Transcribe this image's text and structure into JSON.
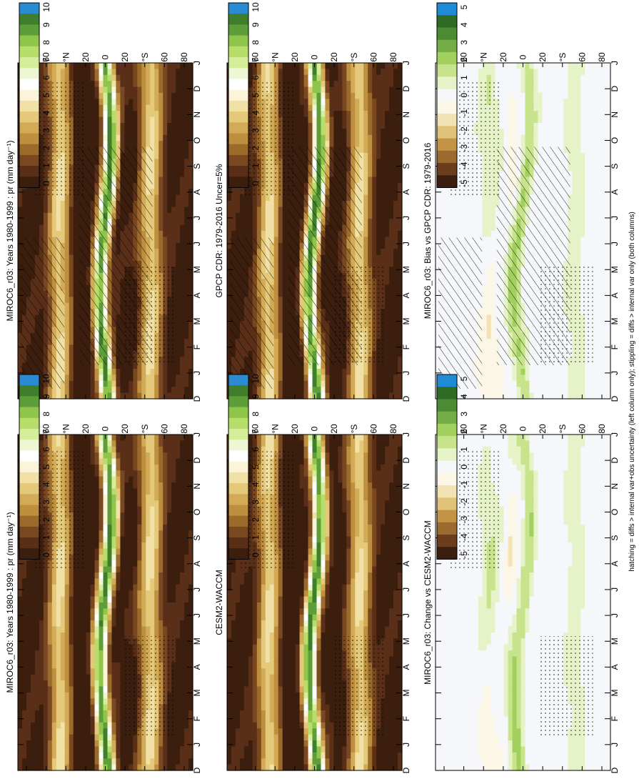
{
  "footnote": "hatching = diffs > internal var+obs uncertainty (left column only); stippling = diffs > internal var only (both columns)",
  "palettes": {
    "precip": [
      "#fdfdfd",
      "#f5eab9",
      "#ecd58b",
      "#ddb864",
      "#cf9c45",
      "#b98436",
      "#a06a2c",
      "#875226",
      "#6f3e20",
      "#5a2f18",
      "#4a2412",
      "#fefefe"
    ],
    "precip_ordered": [
      "#3c1e0f",
      "#5a2f18",
      "#7a4820",
      "#9c6a2b",
      "#be8f3e",
      "#d3ab56",
      "#e4c97a",
      "#f1e1a6",
      "#fbf4d8",
      "#ffffff",
      "#eef7d4",
      "#d6ee9a",
      "#b7dd6a",
      "#8fc54a",
      "#5e9e3a",
      "#3f7f2c",
      "#2a8bd2"
    ],
    "diff_ordered": [
      "#3c1e0f",
      "#6a3d1c",
      "#9a6a2e",
      "#c39445",
      "#e0c27a",
      "#f2e3b4",
      "#fbf6e6",
      "#f5f7fb",
      "#e6f2c7",
      "#c7e48c",
      "#a2d05e",
      "#74ad45",
      "#4b8b34",
      "#2f6b25",
      "#1f8ad6"
    ]
  },
  "chart_data": [
    {
      "id": "panel-model-left",
      "type": "heatmap",
      "title": "MIROC6_r03: Years 1980-1999 : pr (mm day⁻¹)",
      "x_ticks": [
        "D",
        "J",
        "F",
        "M",
        "A",
        "M",
        "J",
        "J",
        "A",
        "S",
        "O",
        "N",
        "D",
        "J"
      ],
      "y_ticks": [
        "80",
        "60",
        "°N",
        "20",
        "0",
        "20",
        "°S",
        "60",
        "80"
      ],
      "colorbar_ticks": [
        "10",
        "9",
        "8",
        "7",
        "6",
        "5",
        "4",
        "3",
        "2",
        "1",
        "0"
      ],
      "palette": "precip",
      "hatching": true,
      "stippling": true
    },
    {
      "id": "panel-model-right",
      "type": "heatmap",
      "title": "MIROC6_r03: Years 1980-1999 : pr (mm day⁻¹)",
      "x_ticks": [
        "D",
        "J",
        "F",
        "M",
        "A",
        "M",
        "J",
        "J",
        "A",
        "S",
        "O",
        "N",
        "D",
        "J"
      ],
      "y_ticks": [
        "80",
        "60",
        "°N",
        "20",
        "0",
        "20",
        "°S",
        "60",
        "80"
      ],
      "colorbar_ticks": [
        "10",
        "9",
        "8",
        "7",
        "6",
        "5",
        "4",
        "3",
        "2",
        "1",
        "0"
      ],
      "palette": "precip",
      "hatching": false,
      "stippling": true
    },
    {
      "id": "panel-obs",
      "type": "heatmap",
      "title": "GPCP CDR: 1979-2016 Uncer=5%",
      "x_ticks": [
        "D",
        "J",
        "F",
        "M",
        "A",
        "M",
        "J",
        "J",
        "A",
        "S",
        "O",
        "N",
        "D",
        "J"
      ],
      "y_ticks": [
        "80",
        "60",
        "°N",
        "20",
        "0",
        "20",
        "°S",
        "60",
        "80"
      ],
      "colorbar_ticks": [
        "10",
        "9",
        "8",
        "7",
        "6",
        "5",
        "4",
        "3",
        "2",
        "1",
        "0"
      ],
      "palette": "precip",
      "hatching": true,
      "stippling": true
    },
    {
      "id": "panel-ref",
      "type": "heatmap",
      "title": "CESM2-WACCM",
      "x_ticks": [
        "D",
        "J",
        "F",
        "M",
        "A",
        "M",
        "J",
        "J",
        "A",
        "S",
        "O",
        "N",
        "D",
        "J"
      ],
      "y_ticks": [
        "80",
        "60",
        "°N",
        "20",
        "0",
        "20",
        "°S",
        "60",
        "80"
      ],
      "colorbar_ticks": [
        "10",
        "9",
        "8",
        "7",
        "6",
        "5",
        "4",
        "3",
        "2",
        "1",
        "0"
      ],
      "palette": "precip",
      "hatching": false,
      "stippling": true
    },
    {
      "id": "panel-bias",
      "type": "heatmap",
      "title": "MIROC6_r03: Bias vs GPCP CDR: 1979-2016",
      "x_ticks": [
        "D",
        "J",
        "F",
        "M",
        "A",
        "M",
        "J",
        "J",
        "A",
        "S",
        "O",
        "N",
        "D",
        "J"
      ],
      "y_ticks": [
        "80",
        "60",
        "°N",
        "20",
        "0",
        "20",
        "°S",
        "60",
        "80"
      ],
      "colorbar_ticks": [
        "5",
        "4",
        "3",
        "2",
        "1",
        "0",
        "-1",
        "-2",
        "-3",
        "-4",
        "-5"
      ],
      "palette": "diff",
      "hatching": true,
      "stippling": true
    },
    {
      "id": "panel-change",
      "type": "heatmap",
      "title": "MIROC6_r03: Change vs CESM2-WACCM",
      "x_ticks": [
        "D",
        "J",
        "F",
        "M",
        "A",
        "M",
        "J",
        "J",
        "A",
        "S",
        "O",
        "N",
        "D",
        "J"
      ],
      "y_ticks": [
        "80",
        "60",
        "°N",
        "20",
        "0",
        "20",
        "°S",
        "60",
        "80"
      ],
      "colorbar_ticks": [
        "5",
        "4",
        "3",
        "2",
        "1",
        "0",
        "-1",
        "-2",
        "-3",
        "-4",
        "-5"
      ],
      "palette": "diff",
      "hatching": false,
      "stippling": true
    }
  ]
}
